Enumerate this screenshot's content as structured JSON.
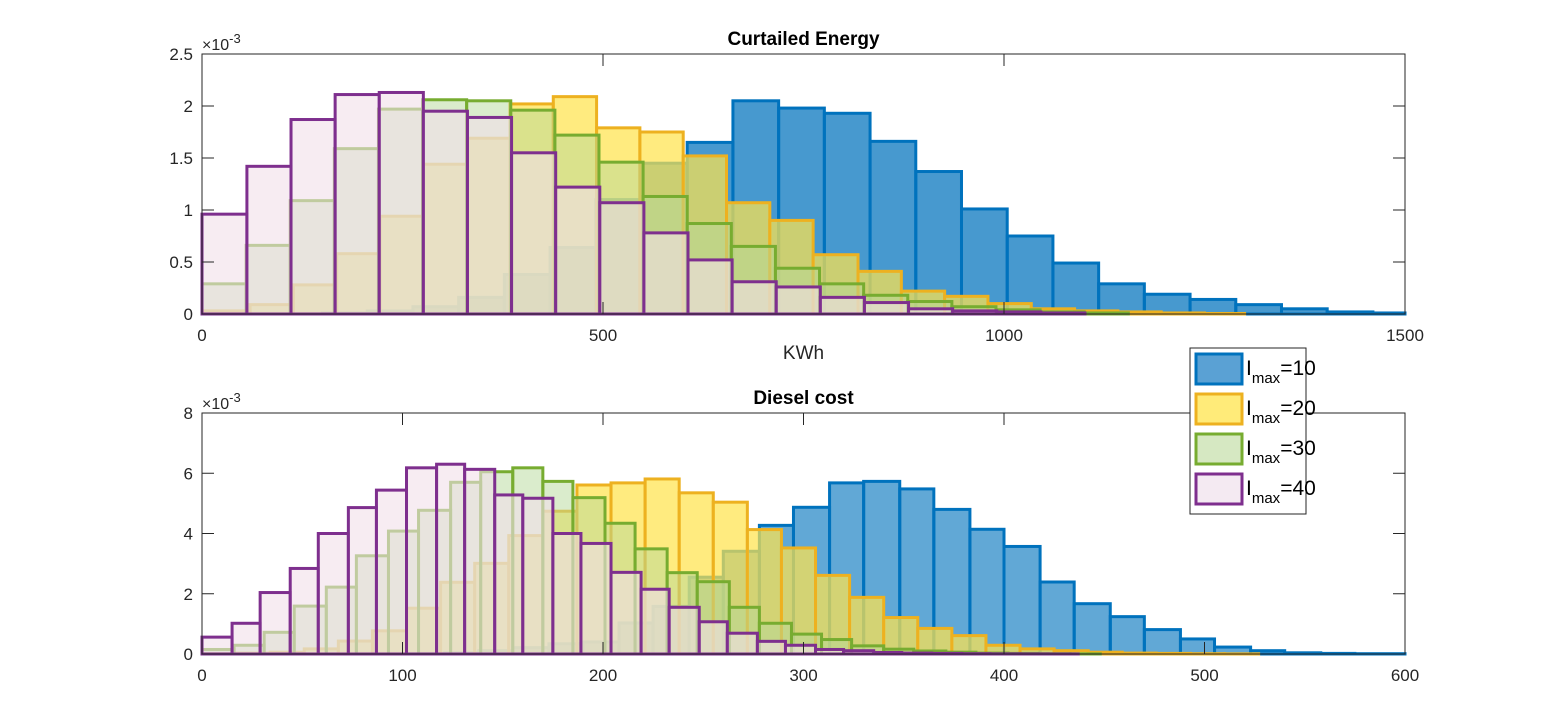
{
  "chart_data": [
    {
      "type": "histogram",
      "title": "Curtailed Energy",
      "xlabel": "KWh",
      "ylabel": "",
      "xlim": [
        0,
        1500
      ],
      "ylim": [
        0,
        0.0025
      ],
      "exponent_label": "×10",
      "exponent_power": "-3",
      "xticks": [
        "0",
        "500",
        "1000",
        "1500"
      ],
      "yticks": [
        "0",
        "0.5",
        "1",
        "1.5",
        "2",
        "2.5"
      ],
      "ytick_values": [
        0,
        0.0005,
        0.001,
        0.0015,
        0.002,
        0.0025
      ],
      "xtick_values": [
        0,
        500,
        1000,
        1500
      ],
      "series": [
        {
          "name_main": "I",
          "name_sub": "max",
          "name_tail": "=10",
          "fill": "#0072BD",
          "edge": "#0072BD",
          "fill_opacity": 0.72,
          "edges": [
            150,
            206,
            263,
            320,
            377,
            434,
            491,
            548,
            605,
            662,
            719,
            776,
            833,
            890,
            947,
            1004,
            1061,
            1118,
            1175,
            1232,
            1289,
            1346,
            1403,
            1460,
            1500
          ],
          "values": [
            1e-05,
            3e-05,
            7e-05,
            0.00016,
            0.00038,
            0.00064,
            0.0011,
            0.00145,
            0.00165,
            0.00205,
            0.00198,
            0.00193,
            0.00166,
            0.00137,
            0.00101,
            0.00075,
            0.00049,
            0.00029,
            0.00019,
            0.00014,
            9e-05,
            5e-05,
            2e-05,
            1e-05
          ]
        },
        {
          "name_main": "I",
          "name_sub": "max",
          "name_tail": "=20",
          "fill": "#FFE34D",
          "edge": "#EDB120",
          "fill_opacity": 0.72,
          "edges": [
            0,
            60,
            114,
            168,
            222,
            276,
            330,
            384,
            438,
            492,
            546,
            600,
            654,
            708,
            762,
            818,
            872,
            926,
            980,
            1034,
            1088,
            1142,
            1196,
            1250,
            1300
          ],
          "values": [
            3e-05,
            9e-05,
            0.00028,
            0.00058,
            0.00094,
            0.00144,
            0.00169,
            0.00202,
            0.00209,
            0.00179,
            0.00175,
            0.00152,
            0.00107,
            0.0009,
            0.00057,
            0.00041,
            0.00022,
            0.00017,
            0.0001,
            5e-05,
            3e-05,
            2e-05,
            1e-05,
            5e-06
          ]
        },
        {
          "name_main": "I",
          "name_sub": "max",
          "name_tail": "=30",
          "fill": "#B6D99A",
          "edge": "#77AC30",
          "fill_opacity": 0.5,
          "edges": [
            0,
            55,
            110,
            165,
            220,
            275,
            330,
            385,
            440,
            495,
            550,
            605,
            660,
            715,
            770,
            825,
            880,
            935,
            990,
            1045,
            1100,
            1155
          ],
          "values": [
            0.00029,
            0.00066,
            0.00109,
            0.00159,
            0.00197,
            0.00206,
            0.00205,
            0.00196,
            0.00172,
            0.00146,
            0.00113,
            0.00087,
            0.00065,
            0.00044,
            0.00029,
            0.00018,
            0.00012,
            7e-05,
            4e-05,
            2e-05,
            1e-05
          ]
        },
        {
          "name_main": "I",
          "name_sub": "max",
          "name_tail": "=40",
          "fill": "#F1E0EA",
          "edge": "#7E2F8E",
          "fill_opacity": 0.6,
          "edges": [
            0,
            56,
            111,
            166,
            221,
            276,
            331,
            386,
            441,
            496,
            551,
            606,
            661,
            716,
            771,
            826,
            881,
            936,
            991,
            1046,
            1101
          ],
          "values": [
            0.00096,
            0.00142,
            0.00187,
            0.00211,
            0.00213,
            0.00195,
            0.00189,
            0.00155,
            0.00122,
            0.00107,
            0.00078,
            0.00052,
            0.00031,
            0.00026,
            0.00016,
            0.00011,
            5e-05,
            3e-05,
            2e-05,
            1e-05
          ]
        }
      ]
    },
    {
      "type": "histogram",
      "title": "Diesel cost",
      "xlabel": "",
      "ylabel": "",
      "xlim": [
        0,
        600
      ],
      "ylim": [
        0,
        0.008
      ],
      "exponent_label": "×10",
      "exponent_power": "-3",
      "xticks": [
        "0",
        "100",
        "200",
        "300",
        "400",
        "500",
        "600"
      ],
      "yticks": [
        "0",
        "2",
        "4",
        "6",
        "8"
      ],
      "ytick_values": [
        0,
        0.002,
        0.004,
        0.006,
        0.008
      ],
      "xtick_values": [
        0,
        100,
        200,
        300,
        400,
        500,
        600
      ],
      "series": [
        {
          "name_main": "I",
          "name_sub": "max",
          "name_tail": "=10",
          "fill": "#0072BD",
          "edge": "#0072BD",
          "fill_opacity": 0.62,
          "edges": [
            103,
            121,
            138,
            155,
            173,
            190,
            208,
            225,
            243,
            260,
            278,
            295,
            313,
            330,
            348,
            365,
            383,
            400,
            418,
            435,
            453,
            470,
            488,
            505,
            523,
            540,
            558,
            575,
            600
          ],
          "values": [
            1e-05,
            4e-05,
            0.00011,
            0.00021,
            0.00034,
            0.0004,
            0.00103,
            0.00158,
            0.00255,
            0.00341,
            0.00427,
            0.00487,
            0.00568,
            0.00573,
            0.00548,
            0.0048,
            0.00414,
            0.00357,
            0.00239,
            0.00167,
            0.00124,
            0.00081,
            0.0005,
            0.00023,
            0.00011,
            4e-05,
            2e-05,
            1e-05
          ]
        },
        {
          "name_main": "I",
          "name_sub": "max",
          "name_tail": "=20",
          "fill": "#FFE34D",
          "edge": "#EDB120",
          "fill_opacity": 0.72,
          "edges": [
            0,
            17,
            34,
            51,
            68,
            85,
            102,
            119,
            136,
            153,
            170,
            187,
            204,
            221,
            238,
            255,
            272,
            289,
            306,
            323,
            340,
            357,
            374,
            391,
            408,
            425,
            442,
            459,
            476,
            493,
            510,
            527
          ],
          "values": [
            1e-05,
            3e-05,
            6e-05,
            0.00017,
            0.00043,
            0.00077,
            0.00152,
            0.00238,
            0.00301,
            0.00393,
            0.00474,
            0.00561,
            0.00568,
            0.00581,
            0.00535,
            0.00504,
            0.00413,
            0.00352,
            0.00261,
            0.00188,
            0.00121,
            0.00085,
            0.00061,
            0.00029,
            0.00017,
            0.00011,
            6e-05,
            3e-05,
            2e-05,
            1e-05,
            5e-06
          ]
        },
        {
          "name_main": "I",
          "name_sub": "max",
          "name_tail": "=30",
          "fill": "#B6D99A",
          "edge": "#77AC30",
          "fill_opacity": 0.5,
          "edges": [
            0,
            16,
            31,
            46,
            62,
            77,
            93,
            108,
            124,
            139,
            155,
            170,
            185,
            201,
            216,
            232,
            247,
            263,
            278,
            294,
            309,
            324,
            340,
            355,
            371,
            386,
            402,
            417,
            433,
            448
          ],
          "values": [
            0.00015,
            0.00029,
            0.00072,
            0.00159,
            0.00222,
            0.00326,
            0.00408,
            0.00477,
            0.0057,
            0.00605,
            0.00618,
            0.00573,
            0.00519,
            0.00434,
            0.00349,
            0.0027,
            0.0024,
            0.00155,
            0.00102,
            0.00066,
            0.00048,
            0.00027,
            0.00016,
            0.0001,
            6e-05,
            3e-05,
            2e-05,
            1e-05,
            5e-06
          ]
        },
        {
          "name_main": "I",
          "name_sub": "max",
          "name_tail": "=40",
          "fill": "#F1E0EA",
          "edge": "#7E2F8E",
          "fill_opacity": 0.6,
          "edges": [
            0,
            15,
            29,
            44,
            58,
            73,
            87,
            102,
            117,
            131,
            146,
            160,
            175,
            189,
            204,
            219,
            233,
            248,
            262,
            277,
            291,
            306,
            320,
            335,
            349,
            364,
            379,
            393,
            408,
            422,
            437
          ],
          "values": [
            0.00056,
            0.00102,
            0.00204,
            0.00284,
            0.004,
            0.00486,
            0.00544,
            0.00618,
            0.0063,
            0.00613,
            0.00528,
            0.00517,
            0.004,
            0.00367,
            0.00271,
            0.00215,
            0.00155,
            0.00107,
            0.00069,
            0.00042,
            0.00029,
            0.00015,
            0.00011,
            5e-05,
            3e-05,
            2e-05,
            1e-05,
            5e-06,
            3e-06,
            1e-06
          ]
        }
      ]
    }
  ],
  "legend": {
    "placement": "right, between the two axes",
    "items": [
      {
        "main": "I",
        "sub": "max",
        "tail": "=10",
        "fill": "#5AA1D4",
        "edge": "#0072BD"
      },
      {
        "main": "I",
        "sub": "max",
        "tail": "=20",
        "fill": "#FFEB79",
        "edge": "#EDB120"
      },
      {
        "main": "I",
        "sub": "max",
        "tail": "=30",
        "fill": "#D6E8C2",
        "edge": "#77AC30"
      },
      {
        "main": "I",
        "sub": "max",
        "tail": "=40",
        "fill": "#F4EAF2",
        "edge": "#7E2F8E"
      }
    ]
  }
}
